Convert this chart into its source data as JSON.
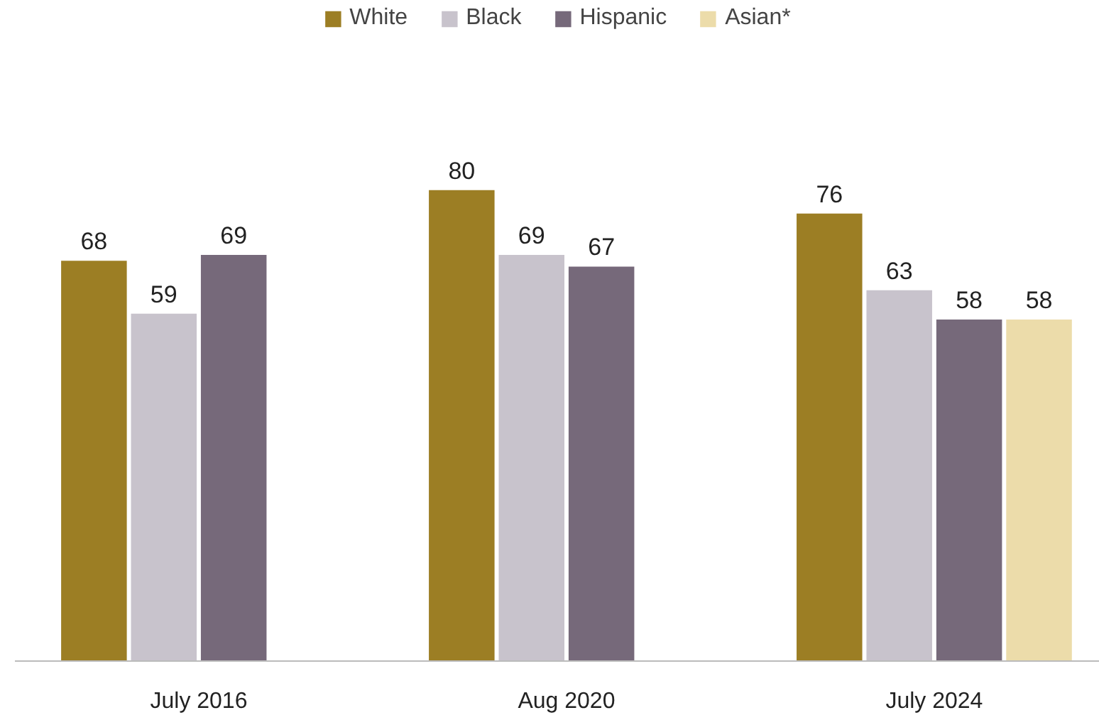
{
  "chart_data": {
    "type": "bar",
    "categories": [
      "July 2016",
      "Aug 2020",
      "July 2024"
    ],
    "data_labels": true,
    "legend": "top",
    "series": [
      {
        "name": "White",
        "color": "#9c7e24",
        "values": [
          68,
          80,
          76
        ]
      },
      {
        "name": "Black",
        "color": "#c8c3cc",
        "values": [
          59,
          69,
          63
        ]
      },
      {
        "name": "Hispanic",
        "color": "#76697a",
        "values": [
          69,
          67,
          58
        ]
      },
      {
        "name": "Asian*",
        "color": "#ecdcaa",
        "values": [
          null,
          null,
          58
        ]
      }
    ]
  }
}
